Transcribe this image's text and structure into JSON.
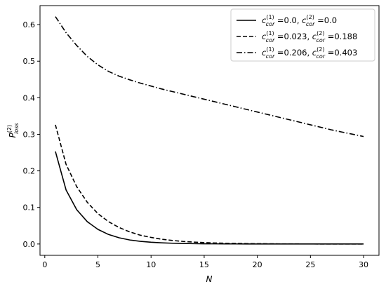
{
  "chart_data": {
    "type": "line",
    "xlabel": "N",
    "ylabel": "P(2)loss",
    "ylabel_main": "P",
    "ylabel_sup": "(2)",
    "ylabel_sub": "loss",
    "xlim": [
      -0.45,
      31.45
    ],
    "ylim": [
      -0.031,
      0.652
    ],
    "xticks": [
      0,
      5,
      10,
      15,
      20,
      25,
      30
    ],
    "yticks": [
      0.0,
      0.1,
      0.2,
      0.3,
      0.4,
      0.5,
      0.6
    ],
    "xtick_labels": [
      "0",
      "5",
      "10",
      "15",
      "20",
      "25",
      "30"
    ],
    "ytick_labels": [
      "0.0",
      "0.1",
      "0.2",
      "0.3",
      "0.4",
      "0.5",
      "0.6"
    ],
    "grid": false,
    "legend_position": "top-right",
    "x": [
      1,
      2,
      3,
      4,
      5,
      6,
      7,
      8,
      9,
      10,
      11,
      12,
      13,
      14,
      15,
      16,
      17,
      18,
      19,
      20,
      21,
      22,
      23,
      24,
      25,
      26,
      27,
      28,
      29,
      30
    ],
    "series": [
      {
        "c1": "0.0",
        "c2": "0.0",
        "style": "solid",
        "color": "#000000",
        "values": [
          0.253,
          0.148,
          0.094,
          0.061,
          0.04,
          0.026,
          0.017,
          0.011,
          0.0073,
          0.0048,
          0.0032,
          0.0021,
          0.0014,
          0.0009,
          0.0006,
          0.0004,
          0.0003,
          0.0002,
          0.0001,
          0.0001,
          0.0001,
          0,
          0,
          0,
          0,
          0,
          0,
          0,
          0,
          0
        ]
      },
      {
        "c1": "0.023",
        "c2": "0.188",
        "style": "dashed",
        "color": "#000000",
        "values": [
          0.326,
          0.218,
          0.157,
          0.114,
          0.083,
          0.061,
          0.045,
          0.033,
          0.024,
          0.018,
          0.013,
          0.0097,
          0.0071,
          0.0052,
          0.0038,
          0.0028,
          0.0021,
          0.0015,
          0.0011,
          0.0008,
          0.0006,
          0.0004,
          0.0003,
          0.0002,
          0.0002,
          0.0001,
          0.0001,
          0.0001,
          0.0001,
          0
        ]
      },
      {
        "c1": "0.206",
        "c2": "0.403",
        "style": "dashdot",
        "color": "#000000",
        "values": [
          0.622,
          0.578,
          0.543,
          0.513,
          0.49,
          0.472,
          0.459,
          0.449,
          0.44,
          0.432,
          0.424,
          0.417,
          0.41,
          0.403,
          0.396,
          0.389,
          0.382,
          0.375,
          0.368,
          0.361,
          0.354,
          0.347,
          0.34,
          0.333,
          0.326,
          0.319,
          0.312,
          0.306,
          0.3,
          0.294
        ]
      }
    ],
    "legend": {
      "prefix": "c",
      "sub": "cor",
      "sup1": "(1)",
      "sup2": "(2)",
      "eq": " =",
      "sep": ", "
    }
  }
}
